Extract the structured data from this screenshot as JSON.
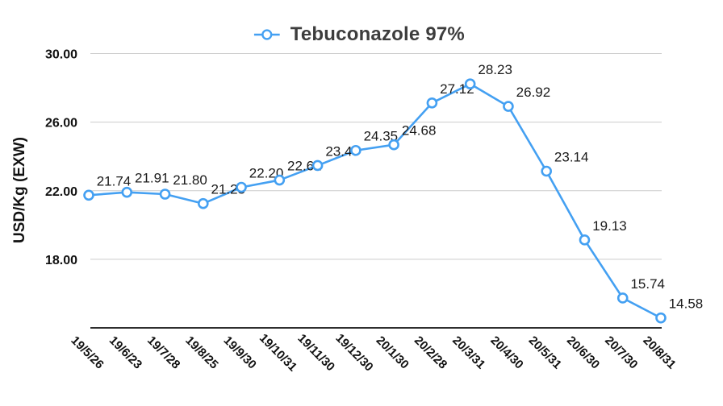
{
  "chart_data": {
    "type": "line",
    "title": "Tebuconazole 97%",
    "legend_position": "top",
    "ylabel": "USD/Kg (EXW)",
    "categories": [
      "19/5/26",
      "19/6/23",
      "19/7/28",
      "19/8/25",
      "19/9/30",
      "19/10/31",
      "19/11/30",
      "19/12/30",
      "20/1/30",
      "20/2/28",
      "20/3/31",
      "20/4/30",
      "20/5/31",
      "20/6/30",
      "20/7/30",
      "20/8/31"
    ],
    "series": [
      {
        "name": "Tebuconazole 97%",
        "values": [
          21.74,
          21.91,
          21.8,
          21.25,
          22.2,
          22.62,
          23.47,
          24.35,
          24.68,
          27.12,
          28.23,
          26.92,
          23.14,
          19.13,
          15.74,
          14.58
        ],
        "labels": [
          "21.74",
          "21.91",
          "21.80",
          "21.25",
          "22.20",
          "22.62",
          "23.47",
          "24.35",
          "24.68",
          "27.12",
          "28.23",
          "26.92",
          "23.14",
          "19.13",
          "15.74",
          "14.58"
        ]
      }
    ],
    "ylim": [
      14,
      30
    ],
    "yticks": [
      {
        "value": 30,
        "label": "30.00"
      },
      {
        "value": 26,
        "label": "26.00"
      },
      {
        "value": 22,
        "label": "22.00"
      },
      {
        "value": 18,
        "label": "18.00"
      }
    ],
    "grid": true,
    "xlabel_rotation_deg": 45,
    "colors": {
      "line": "#44A0F2",
      "marker_fill": "#FFFFFF",
      "gridline": "#CCCCCC",
      "axis_line": "#2E2E2E",
      "tick_text": "#111111",
      "data_label_text": "#1A1A1A",
      "title_text": "#3D3D3D",
      "background": "#FFFFFF"
    }
  }
}
